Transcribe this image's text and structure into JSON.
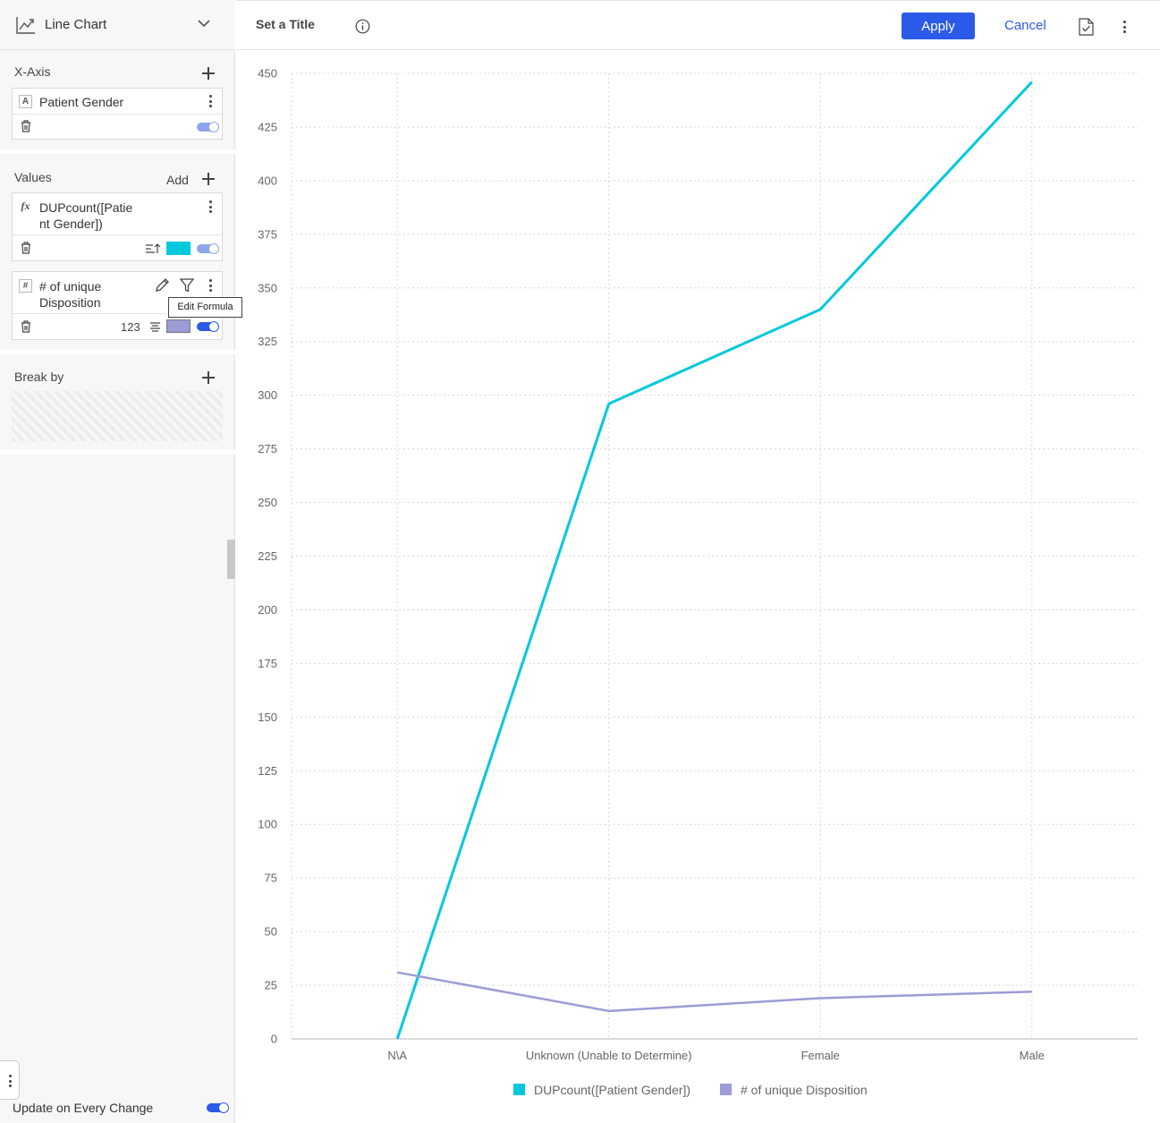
{
  "sidebar": {
    "chart_type": {
      "label": "Line Chart",
      "icon": "line-chart-icon"
    },
    "xaxis": {
      "title": "X-Axis",
      "field": {
        "type_badge": "A",
        "label": "Patient Gender",
        "enabled": true
      }
    },
    "values": {
      "title": "Values",
      "add_label": "Add",
      "items": [
        {
          "type_badge": "fx",
          "label_line1": "DUPcount([Patie",
          "label_line2": "nt Gender])",
          "color": "#00c9dd",
          "enabled": true
        },
        {
          "type_badge": "#",
          "label_line1": "# of unique",
          "label_line2": "Disposition",
          "number_format": "123",
          "color": "#9c9cd6",
          "enabled": true
        }
      ],
      "tooltip": "Edit Formula"
    },
    "breakby": {
      "title": "Break by"
    },
    "update_on_every_change": {
      "label": "Update on Every Change",
      "enabled": true
    }
  },
  "toolbar": {
    "title": "Set a Title",
    "apply_label": "Apply",
    "cancel_label": "Cancel",
    "accent_color": "#2b59e8"
  },
  "chart_data": {
    "type": "line",
    "categories": [
      "N\\A",
      "Unknown (Unable to Determine)",
      "Female",
      "Male"
    ],
    "series": [
      {
        "name": "DUPcount([Patient Gender])",
        "color": "#00c9dd",
        "values": [
          0,
          296,
          340,
          446
        ]
      },
      {
        "name": "# of unique Disposition",
        "color": "#9c9cd6",
        "values": [
          31,
          13,
          19,
          22
        ]
      }
    ],
    "ylim": [
      0,
      450
    ],
    "yticks": [
      0,
      25,
      50,
      75,
      100,
      125,
      150,
      175,
      200,
      225,
      250,
      275,
      300,
      325,
      350,
      375,
      400,
      425,
      450
    ],
    "grid": true,
    "legend": "bottom"
  }
}
